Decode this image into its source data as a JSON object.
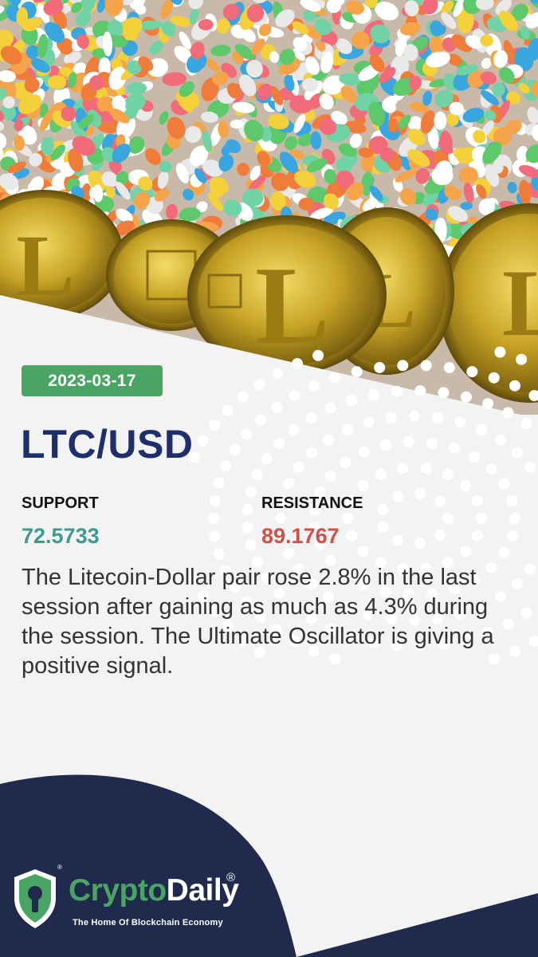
{
  "date": "2023-03-17",
  "pair": "LTC/USD",
  "support": {
    "label": "SUPPORT",
    "value": "72.5733"
  },
  "resistance": {
    "label": "RESISTANCE",
    "value": "89.1767"
  },
  "description": "The Litecoin-Dollar pair rose 2.8% in the last session after gaining as much as 4.3% during the session. The Ultimate Oscillator is giving a positive signal.",
  "brand": {
    "name_part1": "Crypto",
    "name_part2": "Daily",
    "registered": "®",
    "tagline": "The Home Of Blockchain Economy"
  },
  "colors": {
    "navy": "#1e2f6e",
    "green": "#4aa463",
    "support": "#3c9b8e",
    "resistance": "#d0504a",
    "footer": "#1f2a4c"
  },
  "hero_image": "litecoin-coins-on-colorful-gravel"
}
